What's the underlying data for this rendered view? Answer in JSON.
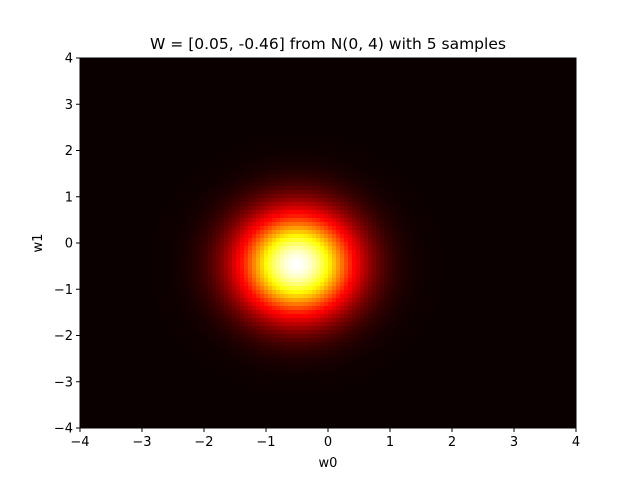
{
  "chart_data": {
    "type": "heatmap",
    "title": "W = [0.05, -0.46] from N(0, 4) with 5 samples",
    "xlabel": "w0",
    "ylabel": "w1",
    "xlim": [
      -4,
      4
    ],
    "ylim": [
      -4,
      4
    ],
    "xticks": [
      -4,
      -3,
      -2,
      -1,
      0,
      1,
      2,
      3,
      4
    ],
    "yticks": [
      -4,
      -3,
      -2,
      -1,
      0,
      1,
      2,
      3,
      4
    ],
    "xtick_labels": [
      "−4",
      "−3",
      "−2",
      "−1",
      "0",
      "1",
      "2",
      "3",
      "4"
    ],
    "ytick_labels": [
      "−4",
      "−3",
      "−2",
      "−1",
      "0",
      "1",
      "2",
      "3",
      "4"
    ],
    "colormap": "hot",
    "grid": false,
    "distribution": {
      "kind": "gaussian",
      "mean": [
        -0.5,
        -0.46
      ],
      "sigma": [
        0.65,
        0.78
      ],
      "peak_value": 1.0
    }
  }
}
